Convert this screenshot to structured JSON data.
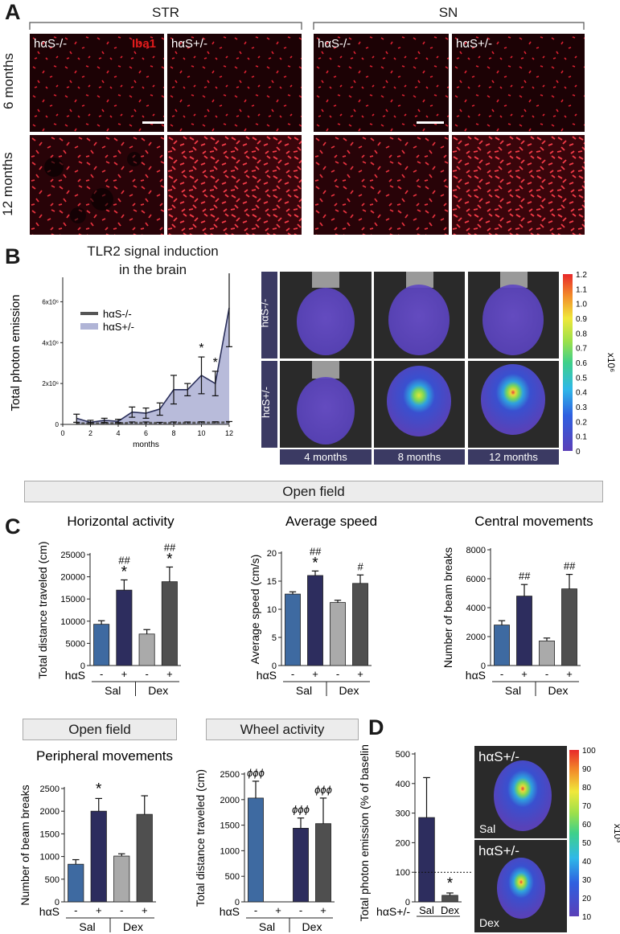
{
  "panel_labels": {
    "A": "A",
    "B": "B",
    "C": "C",
    "D": "D"
  },
  "panelA": {
    "groups": [
      "STR",
      "SN"
    ],
    "rows": [
      "6 months",
      "12 months"
    ],
    "tiles": {
      "str6_neg": "hαS-/-",
      "str6_pos": "hαS+/-",
      "sn6_neg": "hαS-/-",
      "sn6_pos": "hαS+/-"
    },
    "stain": "Iba1"
  },
  "panelB": {
    "title_line1": "TLR2 signal induction",
    "title_line2": "in the brain",
    "ivis_rows": [
      "hαS-/-",
      "hαS+/-"
    ],
    "ivis_cols": [
      "4 months",
      "8 months",
      "12 months"
    ],
    "colorbar_ticks": [
      "1.2",
      "1.1",
      "1.0",
      "0.9",
      "0.8",
      "0.7",
      "0.6",
      "0.5",
      "0.4",
      "0.3",
      "0.2",
      "0.1",
      "0"
    ],
    "colorbar_unit": "x10⁶"
  },
  "openfield_header": "Open field",
  "panelD_row_headers": {
    "openfield": "Open field",
    "wheel": "Wheel activity"
  },
  "panelD": {
    "ivis_labels": [
      "hαS+/-",
      "hαS+/-"
    ],
    "ivis_conditions": [
      "Sal",
      "Dex"
    ],
    "colorbar_ticks": [
      "100",
      "90",
      "80",
      "70",
      "60",
      "50",
      "40",
      "30",
      "20",
      "10"
    ],
    "colorbar_unit": "x10³"
  },
  "chart_data": [
    {
      "type": "line",
      "title": "TLR2 signal induction in the brain",
      "xlabel": "months",
      "ylabel": "Total photon emission",
      "xlim": [
        0,
        12
      ],
      "ylim": [
        0,
        7000000
      ],
      "xticks": [
        "0",
        "2",
        "4",
        "6",
        "8",
        "10",
        "12"
      ],
      "yticks": [
        "0",
        "2x10⁶",
        "4x10⁶",
        "6x10⁶"
      ],
      "legend": [
        "hαS-/-",
        "hαS+/-"
      ],
      "series": [
        {
          "name": "hαS-/-",
          "color": "#555555",
          "x": [
            1,
            2,
            3,
            4,
            5,
            6,
            7,
            8,
            9,
            10,
            11,
            12
          ],
          "y": [
            60000,
            50000,
            60000,
            60000,
            80000,
            80000,
            70000,
            80000,
            80000,
            90000,
            90000,
            100000
          ],
          "err": [
            40000,
            30000,
            30000,
            30000,
            40000,
            40000,
            30000,
            40000,
            40000,
            40000,
            40000,
            40000
          ]
        },
        {
          "name": "hαS+/-",
          "color": "#2a2f5a",
          "x": [
            1,
            2,
            3,
            4,
            5,
            6,
            7,
            8,
            9,
            10,
            11,
            12
          ],
          "y": [
            300000,
            100000,
            200000,
            150000,
            600000,
            550000,
            750000,
            1700000,
            1700000,
            2400000,
            2000000,
            5700000
          ],
          "err": [
            200000,
            100000,
            100000,
            100000,
            250000,
            250000,
            300000,
            700000,
            300000,
            900000,
            600000,
            1900000
          ]
        }
      ],
      "significance": [
        {
          "x": 10,
          "label": "*"
        },
        {
          "x": 11,
          "label": "*"
        },
        {
          "x": 12,
          "label": "*"
        }
      ]
    },
    {
      "type": "bar",
      "title": "Horizontal activity",
      "ylabel": "Total distance traveled (cm)",
      "ylim": [
        0,
        25000
      ],
      "yticks": [
        "0",
        "5000",
        "10000",
        "15000",
        "20000",
        "25000"
      ],
      "categories": [
        "-",
        "+",
        "-",
        "+"
      ],
      "groups": [
        "Sal",
        "Dex"
      ],
      "row_label": "hαS",
      "values": [
        9300,
        17000,
        7100,
        18900
      ],
      "errors": [
        800,
        2300,
        1000,
        3300
      ],
      "colors": [
        "#3e6aa1",
        "#2d2d5e",
        "#aaaaaa",
        "#4f4f4f"
      ],
      "annotations": [
        [
          "",
          ""
        ],
        [
          "##",
          "*"
        ],
        [
          "",
          ""
        ],
        [
          "##",
          "*"
        ]
      ]
    },
    {
      "type": "bar",
      "title": "Average speed",
      "ylabel": "Average speed (cm/s)",
      "ylim": [
        0,
        20
      ],
      "yticks": [
        "0",
        "5",
        "10",
        "15",
        "20"
      ],
      "categories": [
        "-",
        "+",
        "-",
        "+"
      ],
      "groups": [
        "Sal",
        "Dex"
      ],
      "row_label": "hαS",
      "values": [
        12.7,
        16.0,
        11.2,
        14.6
      ],
      "errors": [
        0.4,
        0.8,
        0.4,
        1.5
      ],
      "colors": [
        "#3e6aa1",
        "#2d2d5e",
        "#aaaaaa",
        "#4f4f4f"
      ],
      "annotations": [
        [
          "",
          ""
        ],
        [
          "##",
          "*"
        ],
        [
          "",
          ""
        ],
        [
          "#",
          ""
        ]
      ]
    },
    {
      "type": "bar",
      "title": "Central movements",
      "ylabel": "Number of beam breaks",
      "ylim": [
        0,
        8000
      ],
      "yticks": [
        "0",
        "2000",
        "4000",
        "6000",
        "8000"
      ],
      "categories": [
        "-",
        "+",
        "-",
        "+"
      ],
      "groups": [
        "Sal",
        "Dex"
      ],
      "row_label": "hαS",
      "values": [
        2800,
        4800,
        1700,
        5300
      ],
      "errors": [
        300,
        800,
        200,
        1000
      ],
      "colors": [
        "#3e6aa1",
        "#2d2d5e",
        "#aaaaaa",
        "#4f4f4f"
      ],
      "annotations": [
        [
          "",
          ""
        ],
        [
          "##",
          ""
        ],
        [
          "",
          ""
        ],
        [
          "##",
          ""
        ]
      ]
    },
    {
      "type": "bar",
      "title": "Peripheral movements",
      "ylabel": "Number of beam breaks",
      "ylim": [
        0,
        2500
      ],
      "yticks": [
        "0",
        "500",
        "1000",
        "1500",
        "2000",
        "2500"
      ],
      "categories": [
        "-",
        "+",
        "-",
        "+"
      ],
      "groups": [
        "Sal",
        "Dex"
      ],
      "row_label": "hαS",
      "values": [
        830,
        2000,
        1010,
        1930
      ],
      "errors": [
        100,
        280,
        50,
        410
      ],
      "colors": [
        "#3e6aa1",
        "#2d2d5e",
        "#aaaaaa",
        "#4f4f4f"
      ],
      "annotations": [
        [
          "",
          ""
        ],
        [
          "*",
          ""
        ],
        [
          "",
          ""
        ],
        [
          "",
          ""
        ]
      ]
    },
    {
      "type": "bar",
      "title": "",
      "ylabel": "Total distance traveled (cm)",
      "ylim": [
        0,
        2500
      ],
      "yticks": [
        "0",
        "500",
        "1000",
        "1500",
        "2000",
        "2500"
      ],
      "categories": [
        "-",
        "+",
        "-",
        "+"
      ],
      "groups": [
        "Sal",
        "Dex"
      ],
      "row_label": "hαS",
      "values": [
        2030,
        0,
        1440,
        1530
      ],
      "errors": [
        330,
        0,
        200,
        500
      ],
      "colors": [
        "#3e6aa1",
        "#2d2d5e",
        "#2d2d5e",
        "#4f4f4f"
      ],
      "annotations": [
        [
          "ϕϕϕ",
          ""
        ],
        [
          "",
          ""
        ],
        [
          "ϕϕϕ",
          ""
        ],
        [
          "ϕϕϕ",
          ""
        ]
      ]
    },
    {
      "type": "bar",
      "title": "",
      "ylabel": "Total photon emission (% of baseline)",
      "ylim": [
        0,
        500
      ],
      "yticks": [
        "0",
        "100",
        "200",
        "300",
        "400",
        "500"
      ],
      "categories": [
        "Sal",
        "Dex"
      ],
      "row_label": "hαS+/-",
      "values": [
        285,
        22
      ],
      "errors": [
        135,
        8
      ],
      "colors": [
        "#2d2d5e",
        "#4f4f4f"
      ],
      "baseline": 100,
      "annotations": [
        [
          "",
          ""
        ],
        [
          "*",
          ""
        ]
      ]
    }
  ]
}
